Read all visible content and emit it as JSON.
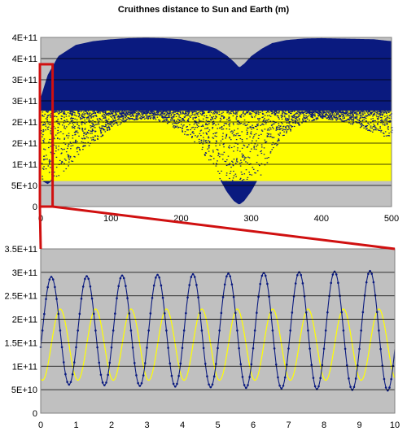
{
  "title": "Cruithnes distance to Sun and Earth (m)",
  "colors": {
    "plot_bg": "#c0c0c0",
    "earth_distance": "#0a1a7f",
    "sun_distance": "#ffff00",
    "zoom_box": "#d01010",
    "grid": "#000000"
  },
  "chart_data": [
    {
      "type": "line",
      "title": "Cruithnes distance to Sun and Earth (m)",
      "xlabel": "",
      "ylabel": "",
      "xlim": [
        0,
        500
      ],
      "ylim": [
        0,
        450000000000
      ],
      "x_ticks": [
        "0",
        "100",
        "200",
        "300",
        "400",
        "500"
      ],
      "y_ticks": [
        "0",
        "5E+10",
        "1E+11",
        "2E+11",
        "2E+11",
        "3E+11",
        "3E+11",
        "4E+11",
        "4E+11"
      ],
      "grid": true,
      "legend": "none",
      "series": [
        {
          "x": [
            0,
            10,
            25,
            50,
            75,
            100,
            125,
            150,
            175,
            200,
            225,
            250,
            265,
            275,
            283,
            290,
            300,
            315,
            330,
            350,
            375,
            400,
            425,
            450,
            475,
            500
          ],
          "y_max": [
            290000000000,
            350000000000,
            400000000000,
            430000000000,
            440000000000,
            445000000000,
            448000000000,
            449000000000,
            448000000000,
            445000000000,
            436000000000,
            420000000000,
            402000000000,
            386000000000,
            370000000000,
            380000000000,
            400000000000,
            420000000000,
            435000000000,
            443000000000,
            447000000000,
            448000000000,
            447000000000,
            446000000000,
            445000000000,
            440000000000
          ],
          "y_min": [
            70000000000,
            60000000000,
            80000000000,
            130000000000,
            170000000000,
            210000000000,
            230000000000,
            235000000000,
            225000000000,
            200000000000,
            160000000000,
            90000000000,
            40000000000,
            15000000000,
            5000000000,
            15000000000,
            40000000000,
            90000000000,
            150000000000,
            195000000000,
            225000000000,
            235000000000,
            230000000000,
            215000000000,
            195000000000,
            180000000000
          ]
        },
        {
          "x": [
            0,
            500
          ],
          "y_max": [
            255000000000,
            255000000000
          ],
          "y_min": [
            68000000000,
            68000000000
          ]
        }
      ],
      "zoom_range": [
        0,
        10
      ]
    },
    {
      "type": "line",
      "xlabel": "",
      "ylabel": "",
      "xlim": [
        0,
        10
      ],
      "ylim": [
        0,
        350000000000
      ],
      "x_ticks": [
        "0",
        "1",
        "2",
        "3",
        "4",
        "5",
        "6",
        "7",
        "8",
        "9",
        "10"
      ],
      "y_ticks": [
        "0",
        "5E+10",
        "1E+11",
        "1.5E+11",
        "2E+11",
        "2.5E+11",
        "3E+11",
        "3.5E+11"
      ],
      "grid": true,
      "legend": "none",
      "series": [
        {
          "period": 1.0,
          "phase_peak": 0.3,
          "max_start": 290000000000,
          "max_end": 304000000000,
          "min_start": 62000000000,
          "min_end": 48000000000
        },
        {
          "period": 1.0,
          "phase_peak": 0.55,
          "max": 222000000000,
          "min": 70000000000
        }
      ]
    }
  ]
}
